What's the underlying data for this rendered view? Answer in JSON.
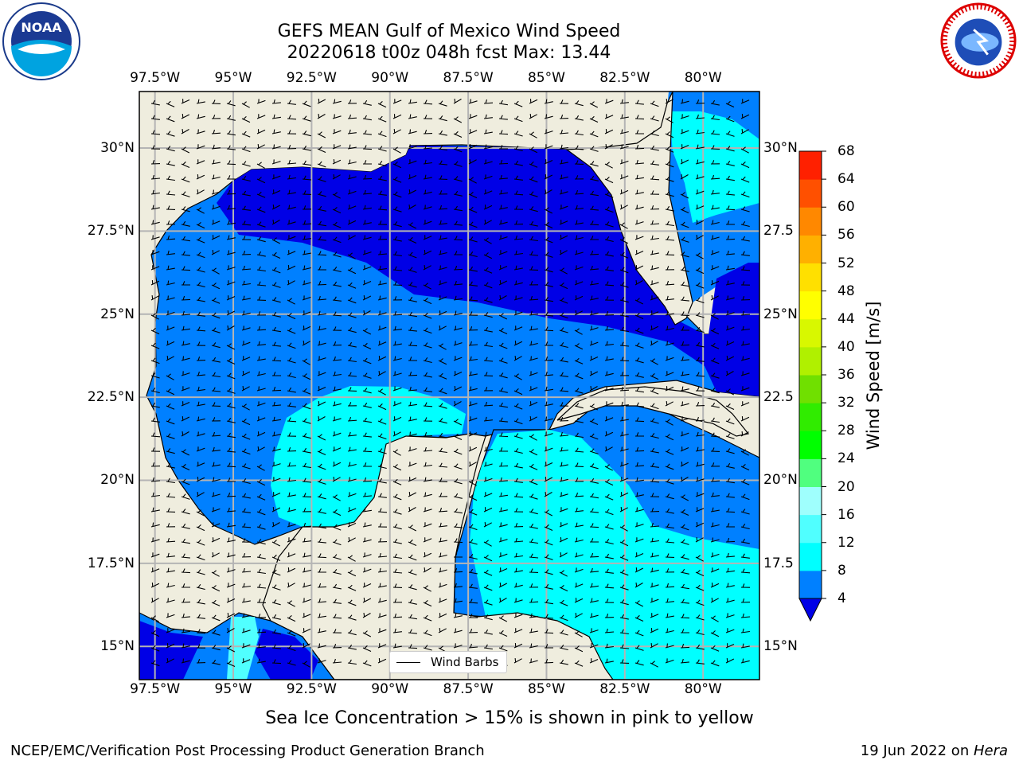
{
  "title": {
    "line1": "GEFS MEAN Gulf of Mexico Wind Speed",
    "line2": "20220618 t00z 048h fcst   Max: 13.44"
  },
  "map": {
    "lon_labels": [
      "97.5°W",
      "95°W",
      "92.5°W",
      "90°W",
      "87.5°W",
      "85°W",
      "82.5°W",
      "80°W"
    ],
    "lat_labels": [
      "30°N",
      "27.5°N",
      "25°N",
      "22.5°N",
      "20°N",
      "17.5°N",
      "15°N"
    ],
    "lat_labels_right": [
      "30°N",
      "27.5",
      "25°N",
      "22.5",
      "20°N",
      "17.5",
      "15°N"
    ],
    "extent": {
      "lon_min": -98.0,
      "lon_max": -78.2,
      "lat_min": 14.0,
      "lat_max": 31.7
    },
    "colors": {
      "land": "#efedde",
      "ocean_4_8": "#0080ff",
      "ocean_lt4": "#0000e6",
      "ocean_8_12": "#00ffff",
      "grid": "#b4b4b4"
    }
  },
  "legend": {
    "label": "Wind Barbs"
  },
  "colorbar": {
    "title": "Wind Speed [m/s]",
    "levels": [
      4,
      8,
      12,
      16,
      20,
      24,
      28,
      32,
      36,
      40,
      44,
      48,
      52,
      56,
      60,
      64,
      68
    ],
    "colors": [
      "#0080ff",
      "#00ffff",
      "#50ffff",
      "#9ffffd",
      "#50ff7f",
      "#00ff00",
      "#30ec00",
      "#70e000",
      "#b0f000",
      "#d8f800",
      "#ffff00",
      "#ffe000",
      "#ffb000",
      "#ff8800",
      "#ff5000",
      "#ff2000"
    ],
    "extend_color": "#0000e6"
  },
  "footnote": "Sea Ice Concentration > 15% is shown in pink to yellow",
  "credit_left": "NCEP/EMC/Verification Post Processing Product Generation Branch",
  "credit_right_date": "19 Jun 2022 on ",
  "credit_right_host": "Hera",
  "logos": {
    "left_text": "NOAA",
    "right_text": "NATIONAL WEATHER SERVICE"
  }
}
